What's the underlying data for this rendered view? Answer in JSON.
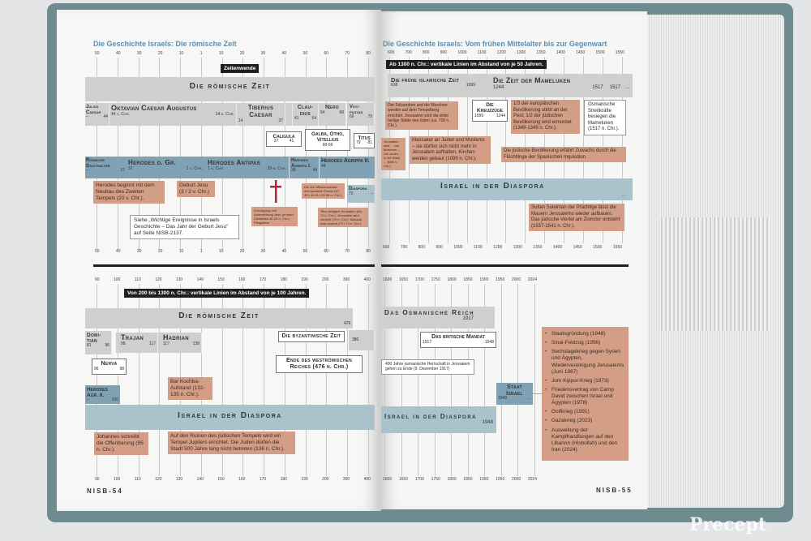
{
  "colors": {
    "cover": "#6e8b8f",
    "band_gray": "#cfcfcd",
    "band_blue": "#7fa2b4",
    "note_orange": "#d49e86",
    "title_blue": "#5d8fb0"
  },
  "left_page": {
    "title": "Die Geschichte Israels: Die römische Zeit",
    "top": {
      "ticks": [
        "50",
        "40",
        "30",
        "20",
        "10",
        "1",
        "10",
        "20",
        "30",
        "40",
        "50",
        "60",
        "70",
        "80"
      ],
      "zeitenwende": "Zeitenwende",
      "roman_era": "Die römische Zeit",
      "dash": "–",
      "rulers": [
        {
          "name": "Julius Caesar",
          "from": "–",
          "to": "44"
        },
        {
          "name": "Oktavian Caesar Augustus",
          "from": "44 v. Chr.",
          "to": "14 n. Chr."
        },
        {
          "name": "Tiberius Caesar",
          "from": "14",
          "to": "37"
        },
        {
          "name": "Clau-dius",
          "from": "41",
          "to": "54"
        },
        {
          "name": "Nero",
          "from": "54",
          "to": "68"
        },
        {
          "name": "Ves-pasian",
          "from": "69",
          "to": "79"
        }
      ],
      "caligula": {
        "name": "Caligula",
        "from": "37",
        "to": "41"
      },
      "galba": {
        "name": "Galba, Otho, Vitellius",
        "years": "68-69"
      },
      "titus": {
        "name": "Titus",
        "from": "79",
        "to": "81"
      },
      "herods": [
        {
          "name": "Römische Statthalter",
          "from": "–",
          "to": "37"
        },
        {
          "name": "Herodes d. Gr.",
          "from": "37",
          "to": "1 v. Chr."
        },
        {
          "name": "Herodes Antipas",
          "from": "1 v. Chr.",
          "to": "39 n. Chr."
        },
        {
          "name": "Herodes Agrippa I.",
          "from": "39",
          "to": "44"
        },
        {
          "name": "Herodes Agrippa II.",
          "from": "44",
          "to": ""
        }
      ],
      "diaspora": {
        "name": "Diaspora",
        "from": "70",
        "to": "–"
      },
      "notes": {
        "tempel": "Herodes beginnt mit dem Neubau des Zweiten Tempels (20 v. Chr.).",
        "geburt": "Geburt Jesu (3 / 2 v. Chr.)",
        "kreuzigung": "Kreuzigung und Auferstehung Jesu (je nach Zählweise 30-33 n. Chr.); Pfingstfest",
        "missionsreisen": "Die drei Missionsreisen des Apostels Paulus (47-48 | 49-51 | 52-56 n. Chr.)",
        "titus": "Titus belagert Jerusalem (66-70 n. Chr.). Jerusalem wird zerstört (70 n. Chr.). Masada wird erobert (73 / 74 n. Chr.).",
        "siehe": "Siehe „Wichtige Ereignisse in Israels Geschichte – Das Jahr der Geburt Jesu\" auf Seite NISB-2137."
      },
      "bottom_ticks": [
        "50",
        "40",
        "30",
        "20",
        "10",
        "1",
        "10",
        "20",
        "30",
        "40",
        "50",
        "60",
        "70",
        "80"
      ]
    },
    "bottom": {
      "ticks": [
        "90",
        "100",
        "110",
        "120",
        "130",
        "140",
        "150",
        "160",
        "170",
        "180",
        "190",
        "200",
        "300",
        "400"
      ],
      "interval_label": "Von 200 bis 1300 n. Chr.: vertikale Linien im Abstand von je 100 Jahren.",
      "roman_era": "Die römische Zeit",
      "year_476": "476",
      "domitian": {
        "name": "Domi-tian",
        "from": "81",
        "to": "96"
      },
      "trajan": {
        "name": "Trajan",
        "from": "98",
        "to": "117"
      },
      "hadrian": {
        "name": "Hadrian",
        "from": "117",
        "to": "138"
      },
      "nerva": {
        "name": "Nerva",
        "from": "96",
        "to": "98"
      },
      "byzantine": "Die byzantinische Zeit",
      "year_380": "380",
      "ende": "Ende des weströmischen Reiches (476 n. Chr.)",
      "agrippa2": {
        "name": "Herodes Agr. II.",
        "from": "–",
        "to": "100"
      },
      "bar_kochba": "Bar Kochba-Aufstand (132-135 n. Chr.).",
      "diaspora": "Israel in der Diaspora",
      "johannes": "Johannes schreibt die Offenbarung (95 n. Chr.).",
      "ruinen": "Auf den Ruinen des jüdischen Tempels wird ein Tempel Jupiters errichtet. Die Juden dürfen die Stadt 500 Jahre lang nicht betreten (136 n. Chr.).",
      "bottom_ticks": [
        "90",
        "100",
        "110",
        "120",
        "130",
        "140",
        "150",
        "160",
        "170",
        "180",
        "190",
        "200",
        "300",
        "400"
      ]
    },
    "page_number": "NISB-54"
  },
  "right_page": {
    "title": "Die Geschichte Israels: Vom frühen Mittelalter bis zur Gegenwart",
    "top": {
      "ticks": [
        "600",
        "700",
        "800",
        "900",
        "1000",
        "1100",
        "1200",
        "1300",
        "1350",
        "1400",
        "1450",
        "1500",
        "1550"
      ],
      "interval_label": "Ab 1300 n. Chr.: vertikale Linien im Abstand von je 50 Jahren.",
      "islamic": {
        "name": "Die frühe islamische Zeit",
        "from": "638",
        "to": "1099"
      },
      "mameluken": {
        "name": "Die Zeit der Mameluken",
        "from": "1244",
        "to": "1517",
        "next": "1517",
        "dash": "..."
      },
      "kreuzzuege": {
        "name": "Die Kreuzzüge",
        "from": "1099",
        "to": "1244"
      },
      "felsendom": "Der Felsendom und die Moschee werden auf dem Tempelberg errichtet. Jerusalem wird die dritte heilige Stätte des Islam (ca. 700 n. Chr.).",
      "small_note": "Jerusalem wird ... von Moslems ... Die Juden ... in die Stadt ... (638 n. Chr.)",
      "massaker": "Massaker an Juden und Moslems – sie dürfen sich nicht mehr in Jerusalem aufhalten. Kirchen werden gebaut (1099 n. Chr.).",
      "pest": "1/3 der europäischen Bevölkerung stirbt an der Pest; 1/2 der jüdischen Bevölkerung wird ermordet (1348-1349 n. Chr.).",
      "osmanen": "Osmanische Streitkräfte besiegen die Mameluken (1517 n. Chr.).",
      "inquisition": "Die jüdische Bevölkerung erfährt Zuwachs durch die Flüchtlinge der Spanischen Inquisition.",
      "diaspora": "Israel in der Diaspora",
      "diaspora_dash": "...",
      "suleiman": "Sultan Suleiman der Prächtige lässt die Mauern Jerusalems wieder aufbauen. Das jüdische Viertel am Zionstor entsteht (1537-1541 n. Chr.).",
      "bottom_ticks": [
        "600",
        "700",
        "800",
        "900",
        "1000",
        "1100",
        "1200",
        "1300",
        "1350",
        "1400",
        "1450",
        "1500",
        "1550"
      ]
    },
    "bottom": {
      "ticks": [
        "1600",
        "1650",
        "1700",
        "1750",
        "1800",
        "1850",
        "1900",
        "1950",
        "2000",
        "2024"
      ],
      "osmanisch": {
        "name": "Das Osmanische Reich",
        "to": "1917"
      },
      "mandat": {
        "name": "Das britische Mandat",
        "from": "1917",
        "to": "1948"
      },
      "herrschaft": "400 Jahre osmanische Herrschaft in Jerusalem gehen zu Ende (9. Dezember 1917)",
      "staat": {
        "name": "Staat Israel",
        "from": "1948",
        "to": "..."
      },
      "diaspora": {
        "name": "Israel in der Diaspora",
        "to": "1948"
      },
      "events": [
        "Staatsgründung (1948)",
        "Sinai-Feldzug (1956)",
        "Sechstagekrieg gegen Syrien und Ägypten, Wiedervereinigung Jerusalems (Juni 1967)",
        "Jom Kippur-Krieg (1973)",
        "Friedensvertrag von Camp David zwischen Israel und Ägypten (1978)",
        "Golfkrieg (1991)",
        "Gazakrieg (2023)",
        "Ausweitung der Kampfhandlungen auf den Libanon (Hisbollah) und den Iran (2024)"
      ],
      "bottom_ticks": [
        "1600",
        "1650",
        "1700",
        "1750",
        "1800",
        "1850",
        "1900",
        "1950",
        "2000",
        "2024"
      ]
    },
    "page_number": "NISB-55"
  },
  "watermark": "Precept"
}
